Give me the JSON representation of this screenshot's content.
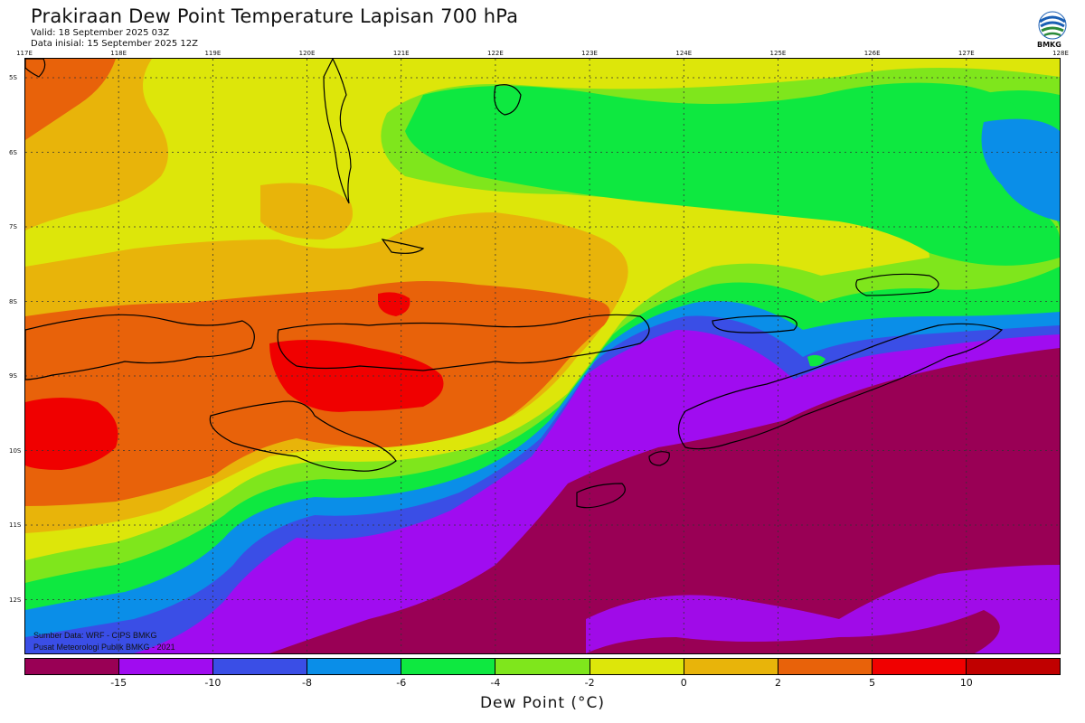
{
  "header": {
    "title": "Prakiraan Dew Point Temperature Lapisan 700 hPa",
    "valid": "Valid: 18 September 2025 03Z",
    "initial": "Data inisial: 15 September 2025 12Z"
  },
  "logo": {
    "icon": "bmkg-logo-icon",
    "text": "BMKG"
  },
  "axes": {
    "lon_labels": [
      "117E",
      "118E",
      "119E",
      "120E",
      "121E",
      "122E",
      "123E",
      "124E",
      "125E",
      "126E",
      "127E",
      "128E"
    ],
    "lat_labels": [
      "5S",
      "6S",
      "7S",
      "8S",
      "9S",
      "10S",
      "11S",
      "12S"
    ]
  },
  "credits": {
    "source": "Sumber Data: WRF - CIPS BMKG",
    "org": "Pusat Meteorologi Publik BMKG - 2021"
  },
  "colorbar": {
    "colors": [
      "#990055",
      "#a00cf0",
      "#3a4ee6",
      "#0a8ee8",
      "#0ee840",
      "#7fe61c",
      "#dde60a",
      "#e8b40a",
      "#e8620a",
      "#f00000",
      "#c00000"
    ],
    "ticks": [
      "-15",
      "-10",
      "-8",
      "-6",
      "-4",
      "-2",
      "0",
      "2",
      "5",
      "10"
    ],
    "unit_label": "Dew Point (°C)"
  },
  "map_colors": {
    "deep_dry": "#990055",
    "very_dry": "#a00cf0",
    "blue": "#3a4ee6",
    "light_blue": "#0a8ee8",
    "green": "#0ee840",
    "lime": "#7fe61c",
    "yellow": "#dde60a",
    "gold": "#e8b40a",
    "orange": "#e8620a",
    "red": "#f00000",
    "coast": "#000000",
    "grid": "#333333"
  }
}
